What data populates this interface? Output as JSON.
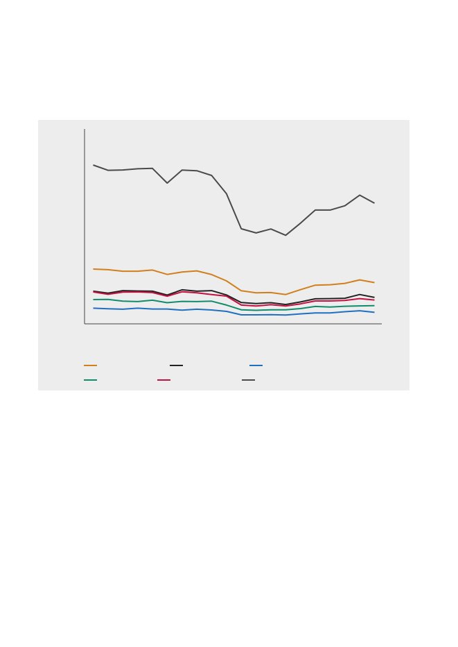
{
  "chart_data": {
    "type": "line",
    "title": "",
    "xlabel": "",
    "ylabel": "",
    "grid": false,
    "legend_placement": "bottom",
    "x": [
      0,
      1,
      2,
      3,
      4,
      5,
      6,
      7,
      8,
      9,
      10,
      11,
      12,
      13,
      14,
      15,
      16,
      17,
      18,
      19
    ],
    "ylim": [
      0,
      100
    ],
    "series": [
      {
        "color": "#d07f1c",
        "values": [
          28.0,
          27.7,
          26.9,
          26.9,
          27.5,
          25.3,
          26.5,
          27.1,
          25.2,
          22.0,
          16.9,
          15.9,
          16.0,
          15.0,
          17.5,
          19.8,
          20.0,
          20.7,
          22.5,
          21.1
        ]
      },
      {
        "color": "#222222",
        "values": [
          16.7,
          15.7,
          17.0,
          16.8,
          16.7,
          14.7,
          17.4,
          16.7,
          17.0,
          14.8,
          10.9,
          10.4,
          10.8,
          9.9,
          11.2,
          12.8,
          12.9,
          13.1,
          15.0,
          13.5
        ]
      },
      {
        "color": "#1f6fc1",
        "values": [
          8.0,
          7.7,
          7.5,
          8.0,
          7.6,
          7.6,
          7.0,
          7.5,
          7.1,
          6.4,
          4.6,
          4.6,
          4.7,
          4.5,
          5.1,
          5.6,
          5.6,
          6.2,
          6.7,
          5.9
        ]
      },
      {
        "color": "#0e8c6c",
        "values": [
          12.4,
          12.5,
          11.6,
          11.4,
          12.1,
          10.8,
          11.5,
          11.4,
          11.6,
          9.6,
          7.2,
          6.9,
          7.2,
          7.2,
          7.8,
          8.9,
          8.6,
          9.0,
          9.2,
          9.3
        ]
      },
      {
        "color": "#c4103f",
        "values": [
          16.3,
          15.1,
          16.2,
          16.3,
          16.0,
          14.1,
          16.4,
          15.9,
          15.0,
          14.2,
          9.6,
          9.1,
          9.8,
          9.1,
          10.2,
          11.7,
          11.7,
          12.0,
          12.9,
          12.2
        ]
      },
      {
        "color": "#4a4a4a",
        "values": [
          81.2,
          78.5,
          78.7,
          79.3,
          79.5,
          72.0,
          78.6,
          78.3,
          75.9,
          66.6,
          48.6,
          46.5,
          48.5,
          45.3,
          51.5,
          58.2,
          58.2,
          60.4,
          65.8,
          61.7
        ]
      }
    ]
  }
}
